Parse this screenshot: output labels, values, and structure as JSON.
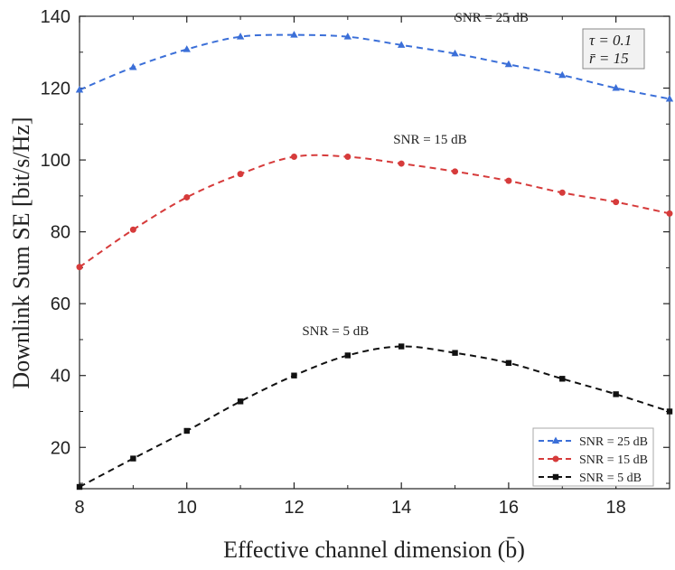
{
  "chart_data": {
    "type": "line",
    "title": "",
    "xlabel": "Effective channel dimension  (b̄)",
    "ylabel": "Downlink Sum SE [bit/s/Hz]",
    "xlim": [
      8,
      19
    ],
    "ylim": [
      8.5,
      140
    ],
    "xticks": [
      8,
      10,
      12,
      14,
      16,
      18
    ],
    "yticks": [
      20,
      40,
      60,
      80,
      100,
      120,
      140
    ],
    "x": [
      8,
      9,
      10,
      11,
      12,
      13,
      14,
      15,
      16,
      17,
      18,
      19
    ],
    "series": [
      {
        "name": "SNR = 25 dB",
        "color": "#3b6fd8",
        "marker": "triangle",
        "values": [
          119.5,
          125.8,
          130.8,
          134.3,
          134.8,
          134.3,
          132.0,
          129.6,
          126.6,
          123.6,
          120.0,
          117.0
        ]
      },
      {
        "name": "SNR = 15 dB",
        "color": "#d63b3b",
        "marker": "circle",
        "values": [
          70.2,
          80.6,
          89.6,
          96.1,
          100.9,
          100.9,
          99.0,
          96.8,
          94.2,
          90.9,
          88.3,
          85.1
        ]
      },
      {
        "name": "SNR = 5 dB",
        "color": "#111111",
        "marker": "square",
        "values": [
          9.0,
          16.9,
          24.6,
          32.8,
          40.0,
          45.6,
          48.1,
          46.3,
          43.5,
          39.1,
          34.8,
          30.0
        ]
      }
    ],
    "annotations": [
      {
        "text": "SNR = 25 dB",
        "x": 15.0,
        "y": 138.5
      },
      {
        "text": "SNR = 15 dB",
        "x": 13.85,
        "y": 104.5
      },
      {
        "text": "SNR = 5 dB",
        "x": 12.15,
        "y": 51.2
      }
    ],
    "parameters": [
      "τ = 0.1",
      "r̄ = 15"
    ],
    "legend_position": "bottom-right"
  }
}
